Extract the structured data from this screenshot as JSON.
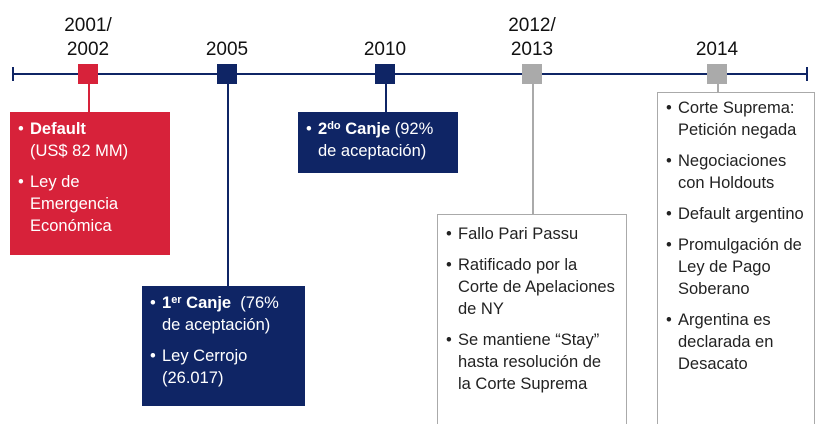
{
  "timeline": {
    "events": [
      {
        "date": [
          "2001/",
          "2002"
        ],
        "color": "#d7223a",
        "bullets": [
          [
            "Default",
            "(US$ 82 MM)"
          ],
          [
            "Ley de Emergencia Económica"
          ]
        ]
      },
      {
        "date": [
          "2005"
        ],
        "color": "#0f2565",
        "bullets": [
          [
            "1",
            "er",
            " Canje",
            "(76% de aceptación)"
          ],
          [
            "Ley Cerrojo (26.017)"
          ]
        ]
      },
      {
        "date": [
          "2010"
        ],
        "color": "#0f2565",
        "bullets": [
          [
            "2",
            "do",
            " Canje",
            "(92% de aceptación)"
          ]
        ]
      },
      {
        "date": [
          "2012/",
          "2013"
        ],
        "color": "#aaaaaa",
        "bullets": [
          [
            "Fallo Pari Passu"
          ],
          [
            "Ratificado por la Corte de Apelaciones de NY"
          ],
          [
            "Se mantiene “Stay” hasta resolución de la Corte Suprema"
          ]
        ]
      },
      {
        "date": [
          "2014"
        ],
        "color": "#aaaaaa",
        "bullets": [
          [
            "Corte Suprema: Petición negada"
          ],
          [
            "Negociaciones con Holdouts"
          ],
          [
            "Default argentino"
          ],
          [
            "Promulgación de Ley de Pago Soberano"
          ],
          [
            "Argentina es declarada en Desacato"
          ]
        ]
      }
    ]
  }
}
